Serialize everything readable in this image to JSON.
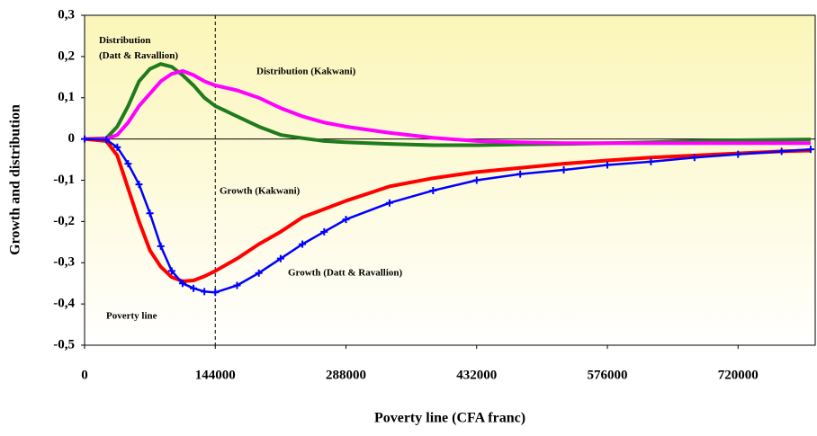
{
  "chart_data": {
    "type": "line",
    "x_label": "Poverty line (CFA franc)",
    "y_label": "Growth and distribution",
    "x": [
      0,
      24000,
      36000,
      48000,
      60000,
      72000,
      84000,
      96000,
      108000,
      120000,
      132000,
      144000,
      168000,
      192000,
      216000,
      240000,
      264000,
      288000,
      336000,
      384000,
      432000,
      480000,
      528000,
      576000,
      624000,
      672000,
      720000,
      768000,
      800000
    ],
    "series": [
      {
        "name": "Distribution (Datt & Ravallion)",
        "color": "#1e7b1e",
        "marker": "none",
        "values": [
          0,
          0.002,
          0.03,
          0.08,
          0.14,
          0.17,
          0.182,
          0.175,
          0.155,
          0.13,
          0.1,
          0.08,
          0.055,
          0.03,
          0.01,
          0.002,
          -0.005,
          -0.008,
          -0.012,
          -0.015,
          -0.015,
          -0.013,
          -0.012,
          -0.01,
          -0.008,
          -0.005,
          -0.003,
          -0.002,
          -0.001
        ]
      },
      {
        "name": "Distribution (Kakwani)",
        "color": "#ff00ff",
        "marker": "none",
        "values": [
          0,
          0,
          0.01,
          0.04,
          0.08,
          0.11,
          0.14,
          0.158,
          0.165,
          0.155,
          0.14,
          0.13,
          0.118,
          0.1,
          0.075,
          0.055,
          0.04,
          0.03,
          0.015,
          0.003,
          -0.005,
          -0.008,
          -0.01,
          -0.01,
          -0.01,
          -0.01,
          -0.01,
          -0.01,
          -0.01
        ]
      },
      {
        "name": "Growth (Kakwani)",
        "color": "#ff0000",
        "marker": "none",
        "values": [
          0,
          -0.005,
          -0.04,
          -0.12,
          -0.2,
          -0.27,
          -0.31,
          -0.335,
          -0.345,
          -0.343,
          -0.333,
          -0.32,
          -0.29,
          -0.255,
          -0.225,
          -0.19,
          -0.17,
          -0.15,
          -0.115,
          -0.095,
          -0.08,
          -0.07,
          -0.06,
          -0.052,
          -0.045,
          -0.04,
          -0.035,
          -0.03,
          -0.028
        ]
      },
      {
        "name": "Growth (Datt & Ravallion)",
        "color": "#0000ff",
        "marker": "plus",
        "values": [
          0,
          -0.002,
          -0.02,
          -0.06,
          -0.11,
          -0.18,
          -0.26,
          -0.32,
          -0.35,
          -0.362,
          -0.37,
          -0.372,
          -0.355,
          -0.325,
          -0.29,
          -0.255,
          -0.225,
          -0.195,
          -0.155,
          -0.125,
          -0.1,
          -0.085,
          -0.075,
          -0.063,
          -0.055,
          -0.045,
          -0.037,
          -0.03,
          -0.025
        ]
      }
    ],
    "xlim": [
      0,
      805000
    ],
    "xticks": [
      0,
      144000,
      288000,
      432000,
      576000,
      720000
    ],
    "ylim": [
      -0.5,
      0.3
    ],
    "yticks": [
      {
        "value": -0.5,
        "label": "-0,5"
      },
      {
        "value": -0.4,
        "label": "-0,4"
      },
      {
        "value": -0.3,
        "label": "-0,3"
      },
      {
        "value": -0.2,
        "label": "-0,2"
      },
      {
        "value": -0.1,
        "label": "-0,1"
      },
      {
        "value": 0,
        "label": "0"
      },
      {
        "value": 0.1,
        "label": "0,1"
      },
      {
        "value": 0.2,
        "label": "0,2"
      },
      {
        "value": 0.3,
        "label": "0,3"
      }
    ],
    "vline": {
      "x": 144000,
      "label": "Poverty line"
    }
  }
}
